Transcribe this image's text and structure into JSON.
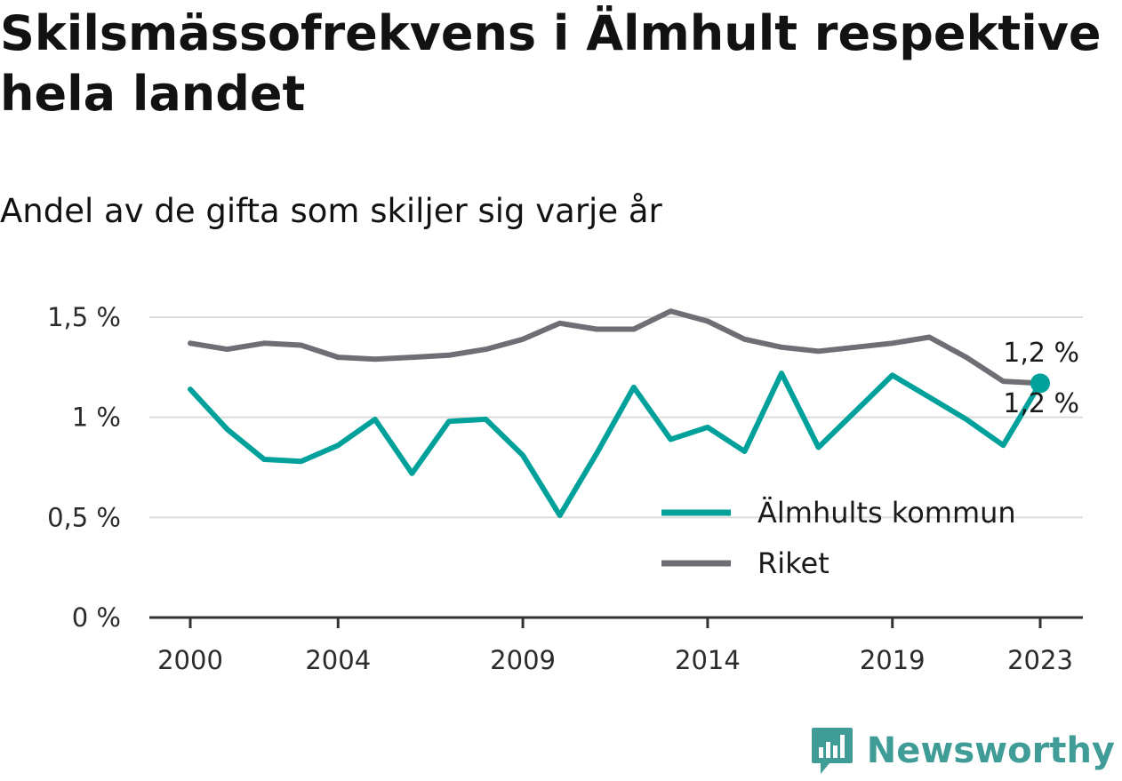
{
  "header": {
    "title": "Skilsmässofrekvens i Älmhult respektive hela landet",
    "subtitle": "Andel av de gifta som skiljer sig varje år"
  },
  "brand": {
    "name": "Newsworthy",
    "color": "#3f9c97"
  },
  "chart_data": {
    "type": "line",
    "x": [
      2000,
      2001,
      2002,
      2003,
      2004,
      2005,
      2006,
      2007,
      2008,
      2009,
      2010,
      2011,
      2012,
      2013,
      2014,
      2015,
      2016,
      2017,
      2018,
      2019,
      2020,
      2021,
      2022,
      2023
    ],
    "x_ticks": [
      2000,
      2004,
      2009,
      2014,
      2019,
      2023
    ],
    "x_tick_labels": [
      "2000",
      "2004",
      "2009",
      "2014",
      "2019",
      "2023"
    ],
    "ylim": [
      0,
      1.5
    ],
    "y_ticks": [
      0,
      0.5,
      1,
      1.5
    ],
    "y_tick_labels": [
      "0 %",
      "0,5 %",
      "1 %",
      "1,5 %"
    ],
    "grid": true,
    "legend_position": "bottom-right",
    "series": [
      {
        "name": "Älmhults kommun",
        "color": "#00a19a",
        "values": [
          1.14,
          0.94,
          0.79,
          0.78,
          0.86,
          0.99,
          0.72,
          0.98,
          0.99,
          0.81,
          0.51,
          0.82,
          1.15,
          0.89,
          0.95,
          0.83,
          1.22,
          0.85,
          1.03,
          1.21,
          1.1,
          0.99,
          0.86,
          1.17
        ],
        "end_label": "1,2 %"
      },
      {
        "name": "Riket",
        "color": "#6f6e74",
        "values": [
          1.37,
          1.34,
          1.37,
          1.36,
          1.3,
          1.29,
          1.3,
          1.31,
          1.34,
          1.39,
          1.47,
          1.44,
          1.44,
          1.53,
          1.48,
          1.39,
          1.35,
          1.33,
          1.35,
          1.37,
          1.4,
          1.3,
          1.18,
          1.17
        ],
        "end_label": "1,2 %"
      }
    ]
  }
}
